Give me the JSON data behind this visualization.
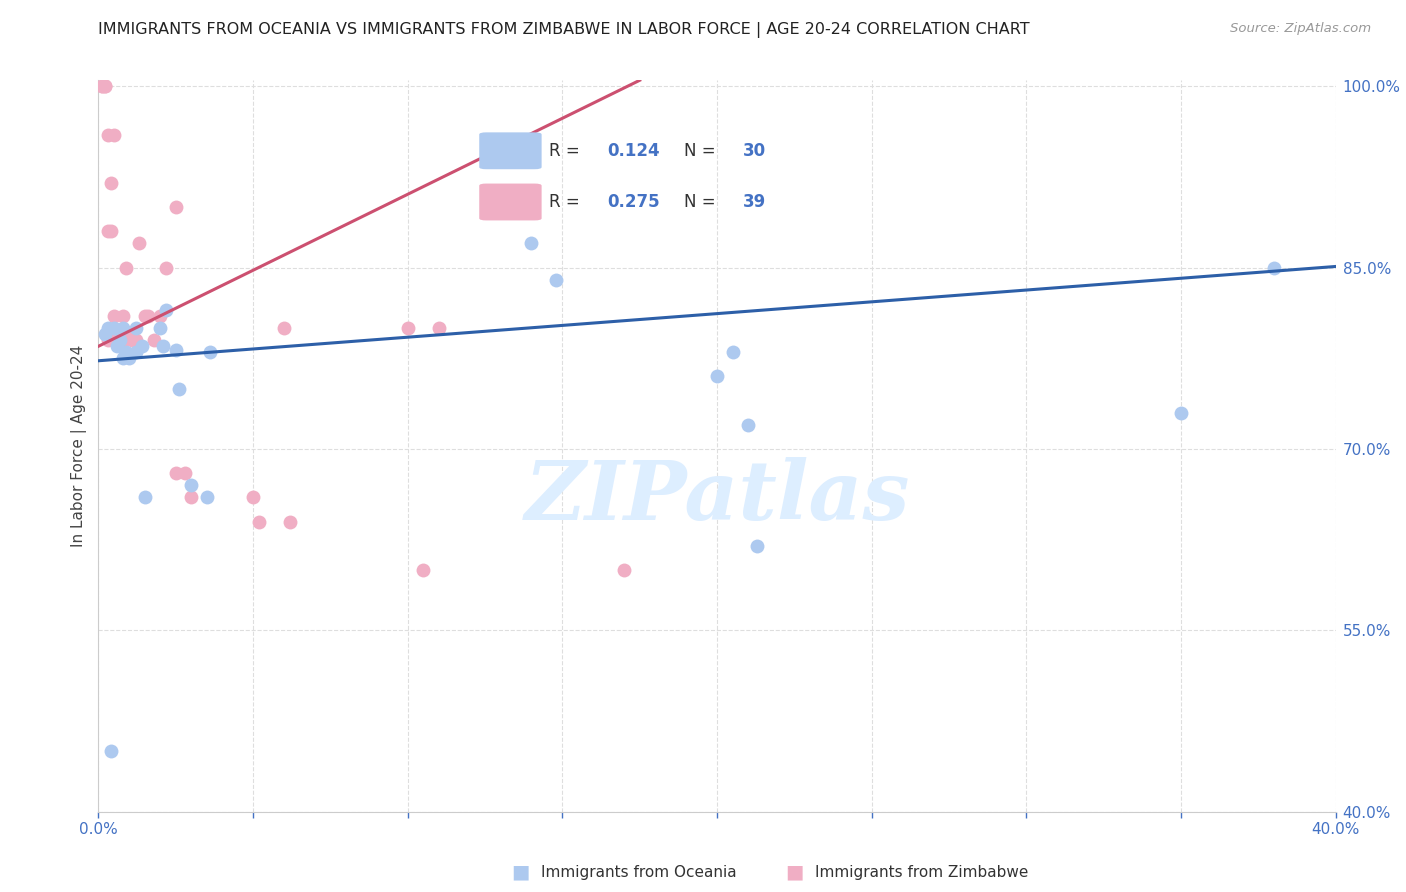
{
  "title": "IMMIGRANTS FROM OCEANIA VS IMMIGRANTS FROM ZIMBABWE IN LABOR FORCE | AGE 20-24 CORRELATION CHART",
  "source": "Source: ZipAtlas.com",
  "ylabel": "In Labor Force | Age 20-24",
  "xlim": [
    0.0,
    0.4
  ],
  "ylim": [
    0.4,
    1.005
  ],
  "xticks": [
    0.0,
    0.05,
    0.1,
    0.15,
    0.2,
    0.25,
    0.3,
    0.35,
    0.4
  ],
  "yticks": [
    0.4,
    0.55,
    0.7,
    0.85,
    1.0
  ],
  "oceania_R": "0.124",
  "oceania_N": "30",
  "zimbabwe_R": "0.275",
  "zimbabwe_N": "39",
  "oceania_color": "#adc9ef",
  "zimbabwe_color": "#f0aec4",
  "oceania_line_color": "#2d5fa8",
  "zimbabwe_line_color": "#cc5070",
  "watermark": "ZIPatlas",
  "watermark_color": "#ddeeff",
  "background_color": "#ffffff",
  "grid_color": "#dedede",
  "legend_color_text": "#4472c4",
  "axis_label_color": "#4472c4",
  "oceania_line_x": [
    0.0,
    0.4
  ],
  "oceania_line_y": [
    0.773,
    0.851
  ],
  "zimbabwe_line_x": [
    0.0,
    0.175
  ],
  "zimbabwe_line_y": [
    0.785,
    1.005
  ],
  "oceania_x": [
    0.002,
    0.003,
    0.005,
    0.006,
    0.007,
    0.008,
    0.009,
    0.01,
    0.012,
    0.014,
    0.015,
    0.02,
    0.021,
    0.022,
    0.025,
    0.026,
    0.03,
    0.035,
    0.036,
    0.14,
    0.148,
    0.2,
    0.205,
    0.213,
    0.35,
    0.38,
    0.004,
    0.008,
    0.012,
    0.21
  ],
  "oceania_y": [
    0.795,
    0.8,
    0.8,
    0.785,
    0.79,
    0.8,
    0.78,
    0.775,
    0.8,
    0.785,
    0.66,
    0.8,
    0.785,
    0.815,
    0.782,
    0.75,
    0.67,
    0.66,
    0.78,
    0.87,
    0.84,
    0.76,
    0.78,
    0.62,
    0.73,
    0.85,
    0.45,
    0.775,
    0.78,
    0.72
  ],
  "zimbabwe_x": [
    0.001,
    0.001,
    0.002,
    0.002,
    0.003,
    0.003,
    0.004,
    0.004,
    0.005,
    0.005,
    0.006,
    0.007,
    0.007,
    0.008,
    0.008,
    0.009,
    0.01,
    0.011,
    0.012,
    0.013,
    0.015,
    0.016,
    0.018,
    0.02,
    0.022,
    0.025,
    0.03,
    0.05,
    0.052,
    0.06,
    0.062,
    0.1,
    0.105,
    0.11,
    0.17,
    0.003,
    0.005,
    0.025,
    0.028
  ],
  "zimbabwe_y": [
    1.0,
    1.0,
    1.0,
    1.0,
    0.96,
    0.88,
    0.92,
    0.88,
    0.96,
    0.79,
    0.79,
    0.79,
    0.79,
    0.81,
    0.79,
    0.85,
    0.795,
    0.79,
    0.79,
    0.87,
    0.81,
    0.81,
    0.79,
    0.81,
    0.85,
    0.68,
    0.66,
    0.66,
    0.64,
    0.8,
    0.64,
    0.8,
    0.6,
    0.8,
    0.6,
    0.79,
    0.81,
    0.9,
    0.68
  ]
}
